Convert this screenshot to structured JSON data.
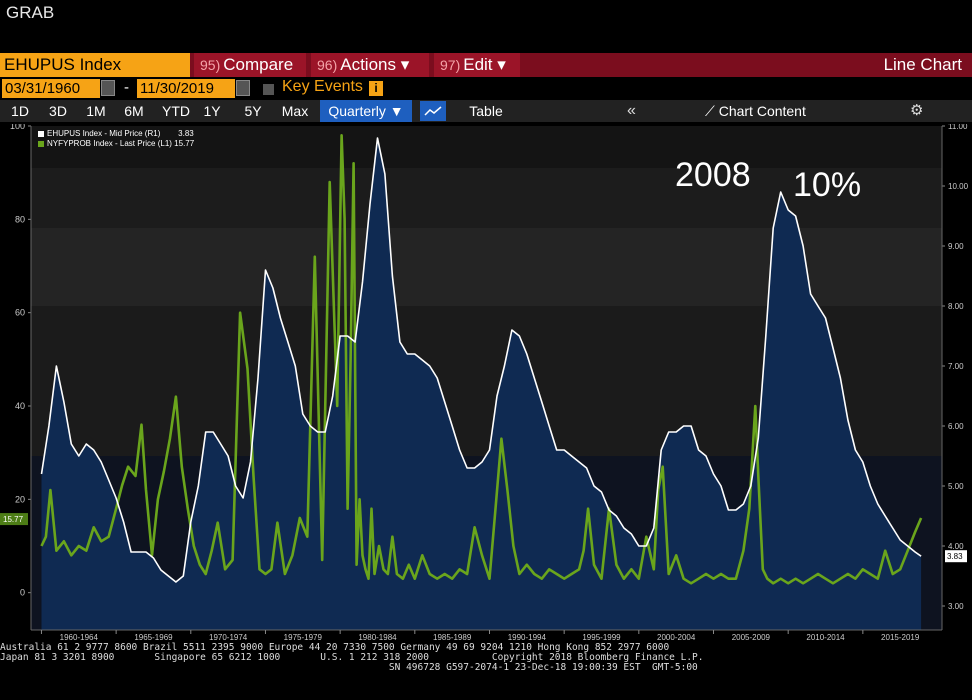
{
  "header": {
    "title": "GRAB"
  },
  "toolbar": {
    "ticker": "EHUPUS Index",
    "compare_num": "95)",
    "compare_label": "Compare",
    "actions_num": "96)",
    "actions_label": "Actions ▾",
    "edit_num": "97)",
    "edit_label": "Edit ▾",
    "view_label": "Line Chart"
  },
  "range": {
    "start": "03/31/1960",
    "sep": "-",
    "end": "11/30/2019",
    "key_events": "Key Events",
    "info": "i"
  },
  "periods": [
    "1D",
    "3D",
    "1M",
    "6M",
    "YTD",
    "1Y",
    "5Y",
    "Max"
  ],
  "frequency": "Quarterly ▼",
  "table_label": "Table",
  "collapse_icon": "«",
  "chart_content_label": "Chart Content",
  "settings_icon": "gear-icon",
  "annotations": {
    "year": "2008",
    "pct": "10%"
  },
  "footer": {
    "line1": "Australia 61 2 9777 8600 Brazil 5511 2395 9000 Europe 44 20 7330 7500 Germany 49 69 9204 1210 Hong Kong 852 2977 6000",
    "line2": "Japan 81 3 3201 8900       Singapore 65 6212 1000       U.S. 1 212 318 2000           Copyright 2018 Bloomberg Finance L.P.",
    "line3": "                                                                    SN 496728 G597-2074-1 23-Dec-18 19:00:39 EST  GMT-5:00"
  },
  "colors": {
    "bg": "#000000",
    "area": "#0f2a52",
    "line_white": "#ffffff",
    "line_green": "#6aa51c",
    "accent": "#f6a315",
    "toolbar": "#7b0d1e"
  },
  "chart_data": {
    "type": "line",
    "xlabel": "",
    "ylabel": "",
    "x_tick_labels": [
      "1960-1964",
      "1965-1969",
      "1970-1974",
      "1975-1979",
      "1980-1984",
      "1985-1989",
      "1990-1994",
      "1995-1999",
      "2000-2004",
      "2005-2009",
      "2010-2014",
      "2015-2019"
    ],
    "left_axis": {
      "ticks": [
        100,
        80,
        60,
        40,
        20,
        0
      ],
      "ylim": [
        -8,
        100
      ]
    },
    "right_axis": {
      "ticks": [
        "11.00",
        "10.00",
        "9.00",
        "8.00",
        "7.00",
        "6.00",
        "5.00",
        "4.00",
        "3.00"
      ],
      "ylim": [
        2.6,
        11.0
      ]
    },
    "legend": [
      {
        "name": "EHUPUS Index - Mid Price (R1)",
        "last": "3.83"
      },
      {
        "name": "NYFYPROB Index - Last Price (L1)",
        "last": "15.77"
      }
    ],
    "last_labels": {
      "left": "15.77",
      "right": "3.83"
    },
    "series": [
      {
        "name": "EHUPUS Index - Mid Price (R1)",
        "axis": "right",
        "x": [
          1960.0,
          1960.5,
          1961.0,
          1961.5,
          1962.0,
          1962.5,
          1963.0,
          1963.5,
          1964.0,
          1964.5,
          1965.0,
          1965.5,
          1966.0,
          1966.5,
          1967.0,
          1967.5,
          1968.0,
          1968.5,
          1969.0,
          1969.5,
          1970.0,
          1970.5,
          1971.0,
          1971.5,
          1972.0,
          1972.5,
          1973.0,
          1973.5,
          1974.0,
          1974.5,
          1975.0,
          1975.5,
          1976.0,
          1976.5,
          1977.0,
          1977.5,
          1978.0,
          1978.5,
          1979.0,
          1979.5,
          1980.0,
          1980.5,
          1981.0,
          1981.5,
          1982.0,
          1982.5,
          1983.0,
          1983.5,
          1984.0,
          1984.5,
          1985.0,
          1985.5,
          1986.0,
          1986.5,
          1987.0,
          1987.5,
          1988.0,
          1988.5,
          1989.0,
          1989.5,
          1990.0,
          1990.5,
          1991.0,
          1991.5,
          1992.0,
          1992.5,
          1993.0,
          1993.5,
          1994.0,
          1994.5,
          1995.0,
          1995.5,
          1996.0,
          1996.5,
          1997.0,
          1997.5,
          1998.0,
          1998.5,
          1999.0,
          1999.5,
          2000.0,
          2000.5,
          2001.0,
          2001.5,
          2002.0,
          2002.5,
          2003.0,
          2003.5,
          2004.0,
          2004.5,
          2005.0,
          2005.5,
          2006.0,
          2006.5,
          2007.0,
          2007.5,
          2008.0,
          2008.5,
          2009.0,
          2009.5,
          2010.0,
          2010.5,
          2011.0,
          2011.5,
          2012.0,
          2012.5,
          2013.0,
          2013.5,
          2014.0,
          2014.5,
          2015.0,
          2015.5,
          2016.0,
          2016.5,
          2017.0,
          2017.5,
          2018.0,
          2018.5,
          2018.9
        ],
        "values": [
          5.2,
          6.0,
          7.0,
          6.4,
          5.7,
          5.5,
          5.7,
          5.6,
          5.4,
          5.1,
          4.8,
          4.4,
          3.9,
          3.9,
          3.9,
          3.8,
          3.6,
          3.5,
          3.4,
          3.5,
          4.4,
          5.0,
          5.9,
          5.9,
          5.7,
          5.5,
          5.0,
          4.8,
          5.4,
          6.8,
          8.6,
          8.3,
          7.8,
          7.4,
          7.0,
          6.2,
          6.0,
          5.9,
          5.9,
          6.5,
          7.5,
          7.5,
          7.4,
          8.4,
          9.7,
          10.8,
          10.2,
          8.5,
          7.4,
          7.2,
          7.2,
          7.1,
          7.0,
          6.8,
          6.4,
          6.0,
          5.6,
          5.3,
          5.3,
          5.4,
          5.6,
          6.5,
          7.0,
          7.6,
          7.5,
          7.2,
          6.8,
          6.4,
          6.0,
          5.6,
          5.6,
          5.5,
          5.4,
          5.3,
          5.0,
          4.9,
          4.6,
          4.5,
          4.3,
          4.2,
          4.0,
          4.0,
          4.3,
          5.6,
          5.9,
          5.9,
          6.0,
          6.0,
          5.6,
          5.5,
          5.2,
          5.0,
          4.6,
          4.6,
          4.7,
          5.0,
          5.8,
          7.5,
          9.3,
          9.9,
          9.6,
          9.5,
          9.0,
          8.2,
          8.0,
          7.8,
          7.3,
          6.8,
          6.1,
          5.6,
          5.4,
          5.0,
          4.7,
          4.5,
          4.3,
          4.1,
          4.0,
          3.9,
          3.83
        ]
      },
      {
        "name": "NYFYPROB Index - Last Price (L1)",
        "axis": "left",
        "x": [
          1960.0,
          1960.3,
          1960.6,
          1961.0,
          1961.5,
          1962.0,
          1962.5,
          1963.0,
          1963.5,
          1964.0,
          1964.5,
          1965.0,
          1965.4,
          1965.8,
          1966.3,
          1966.7,
          1967.0,
          1967.4,
          1967.8,
          1968.2,
          1968.6,
          1969.0,
          1969.4,
          1969.8,
          1970.2,
          1970.6,
          1971.0,
          1971.4,
          1971.8,
          1972.3,
          1972.8,
          1973.3,
          1973.8,
          1974.2,
          1974.6,
          1975.0,
          1975.4,
          1975.8,
          1976.3,
          1976.8,
          1977.3,
          1977.8,
          1978.3,
          1978.8,
          1979.3,
          1979.8,
          1980.1,
          1980.3,
          1980.5,
          1980.7,
          1980.9,
          1981.1,
          1981.3,
          1981.5,
          1981.7,
          1981.9,
          1982.1,
          1982.3,
          1982.6,
          1982.9,
          1983.2,
          1983.5,
          1983.8,
          1984.2,
          1984.6,
          1985.0,
          1985.5,
          1986.0,
          1986.5,
          1987.0,
          1987.5,
          1988.0,
          1988.5,
          1989.0,
          1989.5,
          1990.0,
          1990.4,
          1990.8,
          1991.2,
          1991.6,
          1992.0,
          1992.5,
          1993.0,
          1993.5,
          1994.0,
          1994.5,
          1995.0,
          1995.5,
          1996.0,
          1996.3,
          1996.6,
          1997.0,
          1997.5,
          1998.0,
          1998.5,
          1999.0,
          1999.5,
          2000.0,
          2000.5,
          2001.0,
          2001.3,
          2001.6,
          2002.0,
          2002.5,
          2003.0,
          2003.5,
          2004.0,
          2004.5,
          2005.0,
          2005.5,
          2006.0,
          2006.5,
          2007.0,
          2007.4,
          2007.8,
          2008.0,
          2008.3,
          2008.6,
          2009.0,
          2009.5,
          2010.0,
          2010.5,
          2011.0,
          2011.5,
          2012.0,
          2012.5,
          2013.0,
          2013.5,
          2014.0,
          2014.5,
          2015.0,
          2015.5,
          2016.0,
          2016.5,
          2017.0,
          2017.5,
          2018.0,
          2018.5,
          2018.9
        ],
        "values": [
          10,
          12,
          22,
          9,
          11,
          8,
          10,
          9,
          14,
          11,
          12,
          18,
          23,
          27,
          25,
          36,
          22,
          8,
          20,
          26,
          33,
          42,
          27,
          18,
          10,
          6,
          4,
          9,
          15,
          5,
          7,
          60,
          48,
          25,
          5,
          4,
          5,
          15,
          4,
          8,
          16,
          12,
          72,
          7,
          88,
          40,
          98,
          80,
          18,
          50,
          92,
          6,
          20,
          8,
          5,
          3,
          18,
          4,
          10,
          5,
          4,
          12,
          4,
          3,
          6,
          3,
          8,
          4,
          3,
          4,
          3,
          5,
          4,
          14,
          8,
          3,
          18,
          33,
          22,
          10,
          4,
          6,
          4,
          3,
          5,
          4,
          3,
          4,
          5,
          9,
          18,
          6,
          3,
          18,
          6,
          3,
          5,
          3,
          12,
          5,
          22,
          27,
          4,
          8,
          3,
          2,
          3,
          4,
          3,
          4,
          3,
          3,
          9,
          18,
          40,
          25,
          5,
          3,
          2,
          3,
          2,
          3,
          2,
          3,
          4,
          3,
          2,
          3,
          4,
          3,
          5,
          4,
          3,
          9,
          4,
          5,
          9,
          13,
          16
        ]
      }
    ]
  }
}
